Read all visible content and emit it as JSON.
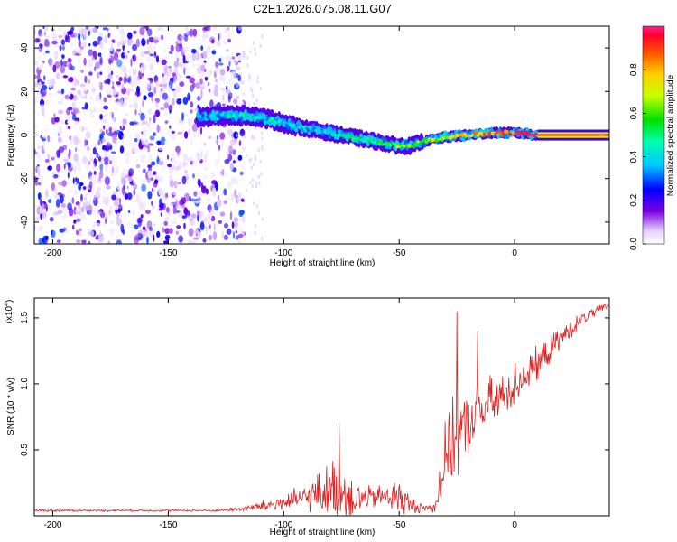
{
  "title": "C2E1.2026.075.08.11.G07",
  "chart_data": [
    {
      "type": "heatmap",
      "name": "spectrogram",
      "xlabel": "Height of straight line (km)",
      "ylabel": "Frequency (Hz)",
      "xlim": [
        -208,
        41
      ],
      "ylim": [
        -50,
        50
      ],
      "xticks": [
        -200,
        -150,
        -100,
        -50,
        0
      ],
      "xtick_labels": [
        "-200",
        "-150",
        "-100",
        "-50",
        "0"
      ],
      "yticks": [
        -40,
        -20,
        0,
        20,
        40
      ],
      "ytick_labels": [
        "-40",
        "-20",
        "0",
        "20",
        "40"
      ],
      "noise_region_x": [
        -208,
        -117
      ],
      "signal_track": {
        "x": [
          -137,
          -125,
          -115,
          -105,
          -95,
          -85,
          -75,
          -65,
          -55,
          -50,
          -45,
          -40,
          -30,
          -20,
          -10,
          0,
          10,
          41
        ],
        "freq": [
          8,
          9,
          9,
          7,
          4,
          2,
          0,
          -2,
          -4,
          -5,
          -5,
          -3,
          -1,
          0,
          1,
          1,
          0,
          0
        ],
        "amplitude": [
          0.35,
          0.4,
          0.45,
          0.4,
          0.38,
          0.4,
          0.45,
          0.5,
          0.55,
          0.6,
          0.62,
          0.62,
          0.7,
          0.75,
          0.85,
          0.9,
          0.9,
          0.95
        ]
      },
      "colorbar": {
        "label": "Normalized spectral amplitude",
        "range": [
          0,
          1
        ],
        "ticks": [
          0.0,
          0.2,
          0.4,
          0.6,
          0.8
        ],
        "tick_labels": [
          "0.0",
          "0.2",
          "0.4",
          "0.6",
          "0.8"
        ]
      }
    },
    {
      "type": "line",
      "name": "snr",
      "xlabel": "Height of straight line (km)",
      "ylabel": "SNR (10 * v/v)",
      "scale_label": "(x10",
      "scale_exponent": "4",
      "scale_suffix": ")",
      "xlim": [
        -208,
        41
      ],
      "ylim": [
        0,
        1.65
      ],
      "xticks": [
        -200,
        -150,
        -100,
        -50,
        0
      ],
      "xtick_labels": [
        "-200",
        "-150",
        "-100",
        "-50",
        "0"
      ],
      "yticks": [
        0.5,
        1.0,
        1.5
      ],
      "ytick_labels": [
        "0.5",
        "1.0",
        "1.5"
      ],
      "color": "#e02020",
      "envelope": {
        "x": [
          -208,
          -130,
          -120,
          -110,
          -100,
          -90,
          -80,
          -75,
          -70,
          -65,
          -60,
          -55,
          -50,
          -45,
          -40,
          -35,
          -32,
          -30,
          -27,
          -25,
          -22,
          -20,
          -15,
          -10,
          -5,
          0,
          10,
          20,
          30,
          41
        ],
        "base": [
          0.04,
          0.04,
          0.05,
          0.07,
          0.1,
          0.14,
          0.2,
          0.18,
          0.14,
          0.13,
          0.14,
          0.15,
          0.14,
          0.08,
          0.06,
          0.06,
          0.25,
          0.45,
          0.55,
          0.6,
          0.65,
          0.7,
          0.8,
          0.85,
          0.9,
          1.0,
          1.15,
          1.35,
          1.5,
          1.6
        ],
        "amp": [
          0.01,
          0.01,
          0.02,
          0.05,
          0.08,
          0.12,
          0.25,
          0.3,
          0.2,
          0.12,
          0.1,
          0.12,
          0.18,
          0.08,
          0.04,
          0.05,
          0.25,
          0.3,
          0.35,
          0.4,
          0.3,
          0.28,
          0.25,
          0.25,
          0.22,
          0.2,
          0.15,
          0.1,
          0.06,
          0.03
        ]
      },
      "peaks": [
        {
          "x": -76,
          "y": 0.71
        },
        {
          "x": -25,
          "y": 1.55
        },
        {
          "x": -16,
          "y": 1.4
        }
      ]
    }
  ]
}
